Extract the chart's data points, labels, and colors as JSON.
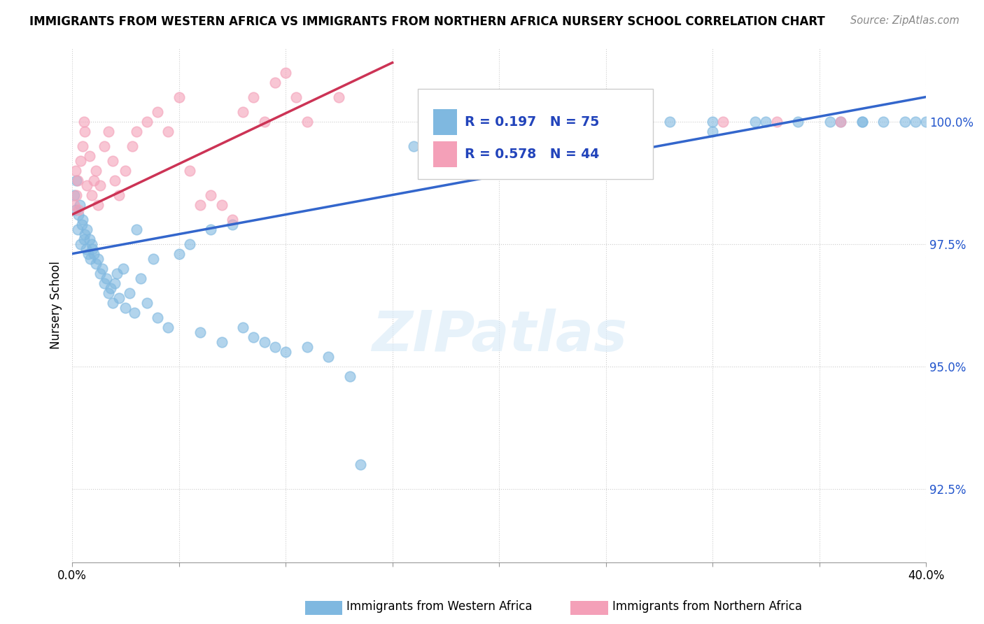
{
  "title": "IMMIGRANTS FROM WESTERN AFRICA VS IMMIGRANTS FROM NORTHERN AFRICA NURSERY SCHOOL CORRELATION CHART",
  "source": "Source: ZipAtlas.com",
  "xlabel_blue": "Immigrants from Western Africa",
  "xlabel_pink": "Immigrants from Northern Africa",
  "ylabel": "Nursery School",
  "xlim": [
    0.0,
    40.0
  ],
  "ylim": [
    91.0,
    101.5
  ],
  "yticks": [
    92.5,
    95.0,
    97.5,
    100.0
  ],
  "ytick_labels": [
    "92.5%",
    "95.0%",
    "97.5%",
    "100.0%"
  ],
  "xticks": [
    0.0,
    5.0,
    10.0,
    15.0,
    20.0,
    25.0,
    30.0,
    35.0,
    40.0
  ],
  "xtick_labels": [
    "0.0%",
    "",
    "",
    "",
    "",
    "",
    "",
    "",
    "40.0%"
  ],
  "blue_R": 0.197,
  "blue_N": 75,
  "pink_R": 0.578,
  "pink_N": 44,
  "blue_color": "#7fb8e0",
  "pink_color": "#f4a0b8",
  "blue_line_color": "#3366cc",
  "pink_line_color": "#cc3355",
  "watermark": "ZIPatlas",
  "blue_line_x0": 0.0,
  "blue_line_y0": 97.3,
  "blue_line_x1": 40.0,
  "blue_line_y1": 100.5,
  "pink_line_x0": 0.0,
  "pink_line_y0": 98.1,
  "pink_line_x1": 15.0,
  "pink_line_y1": 101.2,
  "blue_x": [
    0.1,
    0.15,
    0.2,
    0.25,
    0.3,
    0.35,
    0.4,
    0.45,
    0.5,
    0.55,
    0.6,
    0.65,
    0.7,
    0.75,
    0.8,
    0.85,
    0.9,
    0.95,
    1.0,
    1.1,
    1.2,
    1.3,
    1.4,
    1.5,
    1.6,
    1.7,
    1.8,
    1.9,
    2.0,
    2.1,
    2.2,
    2.4,
    2.5,
    2.7,
    2.9,
    3.0,
    3.2,
    3.5,
    3.8,
    4.0,
    4.5,
    5.0,
    5.5,
    6.0,
    6.5,
    7.0,
    7.5,
    8.0,
    8.5,
    9.0,
    9.5,
    10.0,
    11.0,
    12.0,
    13.0,
    13.5,
    16.0,
    18.0,
    22.0,
    24.0,
    26.0,
    28.0,
    30.0,
    32.0,
    34.0,
    36.0,
    37.0,
    38.0,
    39.0,
    30.0,
    32.5,
    35.5,
    37.0,
    39.5,
    40.0
  ],
  "blue_y": [
    98.5,
    98.2,
    98.8,
    97.8,
    98.1,
    98.3,
    97.5,
    97.9,
    98.0,
    97.6,
    97.7,
    97.4,
    97.8,
    97.3,
    97.6,
    97.2,
    97.5,
    97.4,
    97.3,
    97.1,
    97.2,
    96.9,
    97.0,
    96.7,
    96.8,
    96.5,
    96.6,
    96.3,
    96.7,
    96.9,
    96.4,
    97.0,
    96.2,
    96.5,
    96.1,
    97.8,
    96.8,
    96.3,
    97.2,
    96.0,
    95.8,
    97.3,
    97.5,
    95.7,
    97.8,
    95.5,
    97.9,
    95.8,
    95.6,
    95.5,
    95.4,
    95.3,
    95.4,
    95.2,
    94.8,
    93.0,
    99.5,
    99.8,
    99.9,
    99.9,
    100.0,
    100.0,
    100.0,
    100.0,
    100.0,
    100.0,
    100.0,
    100.0,
    100.0,
    99.8,
    100.0,
    100.0,
    100.0,
    100.0,
    100.0
  ],
  "pink_x": [
    0.1,
    0.15,
    0.2,
    0.25,
    0.3,
    0.4,
    0.5,
    0.55,
    0.6,
    0.7,
    0.8,
    0.9,
    1.0,
    1.1,
    1.2,
    1.3,
    1.5,
    1.7,
    1.9,
    2.0,
    2.2,
    2.5,
    2.8,
    3.0,
    3.5,
    4.0,
    4.5,
    5.0,
    5.5,
    6.0,
    6.5,
    7.0,
    7.5,
    8.0,
    8.5,
    9.0,
    9.5,
    10.0,
    10.5,
    11.0,
    12.5,
    30.5,
    33.0,
    36.0
  ],
  "pink_y": [
    98.3,
    99.0,
    98.5,
    98.8,
    98.2,
    99.2,
    99.5,
    100.0,
    99.8,
    98.7,
    99.3,
    98.5,
    98.8,
    99.0,
    98.3,
    98.7,
    99.5,
    99.8,
    99.2,
    98.8,
    98.5,
    99.0,
    99.5,
    99.8,
    100.0,
    100.2,
    99.8,
    100.5,
    99.0,
    98.3,
    98.5,
    98.3,
    98.0,
    100.2,
    100.5,
    100.0,
    100.8,
    101.0,
    100.5,
    100.0,
    100.5,
    100.0,
    100.0,
    100.0
  ]
}
